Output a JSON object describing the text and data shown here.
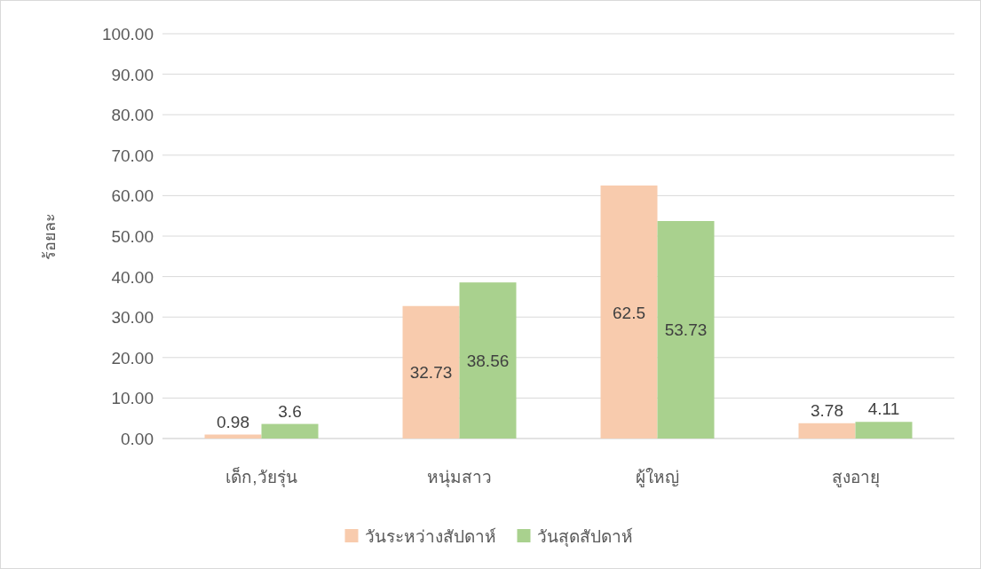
{
  "chart_data": {
    "type": "bar",
    "ylabel": "ร้อยละ",
    "categories": [
      "เด็ก,วัยรุ่น",
      "หนุ่มสาว",
      "ผู้ใหญ่",
      "สูงอายุ"
    ],
    "series": [
      {
        "name": "วันระหว่างสัปดาห์",
        "color": "#f8cbad",
        "values": [
          0.98,
          32.73,
          62.5,
          3.78
        ]
      },
      {
        "name": "วันสุดสัปดาห์",
        "color": "#a9d18e",
        "values": [
          3.6,
          38.56,
          53.73,
          4.11
        ]
      }
    ],
    "ylim": [
      0,
      100
    ],
    "yticks": [
      {
        "value": 0,
        "label": "0.00"
      },
      {
        "value": 10,
        "label": "10.00"
      },
      {
        "value": 20,
        "label": "20.00"
      },
      {
        "value": 30,
        "label": "30.00"
      },
      {
        "value": 40,
        "label": "40.00"
      },
      {
        "value": 50,
        "label": "50.00"
      },
      {
        "value": 60,
        "label": "60.00"
      },
      {
        "value": 70,
        "label": "70.00"
      },
      {
        "value": 80,
        "label": "80.00"
      },
      {
        "value": 90,
        "label": "90.00"
      },
      {
        "value": 100,
        "label": "100.00"
      }
    ],
    "grid": "y",
    "legend": "bottom",
    "data_labels": true
  }
}
